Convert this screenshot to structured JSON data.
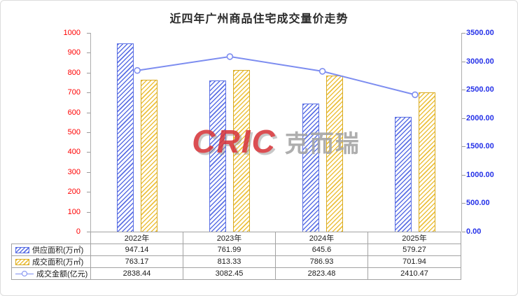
{
  "title": "近四年广州商品住宅成交量价走势",
  "watermark": {
    "cric": "CRIC",
    "cn": "克而瑞"
  },
  "chart_data": {
    "type": "bar+line",
    "title": "近四年广州商品住宅成交量价走势",
    "categories": [
      "2022年",
      "2023年",
      "2024年",
      "2025年"
    ],
    "series": [
      {
        "name": "供应面积(万㎡)",
        "type": "bar",
        "axis": "left",
        "color": "#5a6fe4",
        "values": [
          947.14,
          761.99,
          645.6,
          579.27
        ]
      },
      {
        "name": "成交面积(万㎡)",
        "type": "bar",
        "axis": "left",
        "color": "#ecc03c",
        "values": [
          763.17,
          813.33,
          786.93,
          701.94
        ]
      },
      {
        "name": "成交金额(亿元)",
        "type": "line",
        "axis": "right",
        "color": "#7d8df0",
        "values": [
          2838.44,
          3082.45,
          2823.48,
          2410.47
        ]
      }
    ],
    "left_axis": {
      "min": 0,
      "max": 1000,
      "color": "#ff0000",
      "ticks": [
        "0",
        "100",
        "200",
        "300",
        "400",
        "500",
        "600",
        "700",
        "800",
        "900",
        "1000"
      ]
    },
    "right_axis": {
      "min": 0,
      "max": 3500,
      "color": "#2430e8",
      "ticks": [
        "0.00",
        "500.00",
        "1000.00",
        "1500.00",
        "2000.00",
        "2500.00",
        "3000.00",
        "3500.00"
      ]
    },
    "legend_position": "table-left",
    "grid": false
  }
}
